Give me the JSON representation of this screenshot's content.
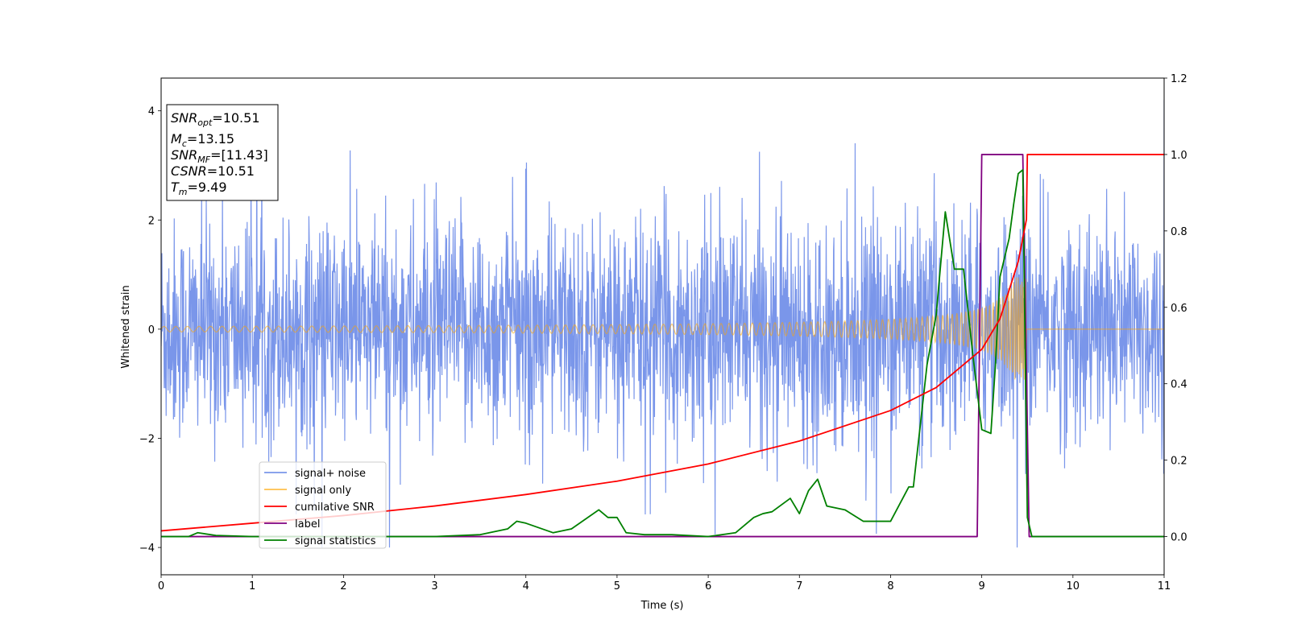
{
  "chart_data": {
    "type": "line",
    "xlabel": "Time (s)",
    "ylabel": "Whitened strain",
    "xlim": [
      0,
      11
    ],
    "ylim": [
      -4.5,
      4.6
    ],
    "y2lim": [
      -0.1,
      1.2
    ],
    "xticks": [
      "0",
      "1",
      "2",
      "3",
      "4",
      "5",
      "6",
      "7",
      "8",
      "9",
      "10",
      "11"
    ],
    "yticks": [
      "−4",
      "−2",
      "0",
      "2",
      "4"
    ],
    "y2ticks": [
      "0.0",
      "0.2",
      "0.4",
      "0.6",
      "0.8",
      "1.0",
      "1.2"
    ],
    "grid": false,
    "legend_position": "lower-left",
    "annotation": {
      "line1_base": "SNR",
      "line1_sub": "opt",
      "line1_val": "=10.51",
      "line2_base": "M",
      "line2_sub": "c",
      "line2_val": "=13.15",
      "line3_base": "SNR",
      "line3_sub": "MF",
      "line3_val": "=[11.43]",
      "line4_base": "CSNR",
      "line4_val": "=10.51",
      "line5_base": "T",
      "line5_sub": "m",
      "line5_val": "=9.49"
    },
    "series": [
      {
        "name": "signal+ noise",
        "color": "#4169E1",
        "axis": "left",
        "description": "whitened noisy strain, roughly ±2.8 with spikes to ±3.9",
        "amplitude_sd": 1.0
      },
      {
        "name": "signal only",
        "color": "#FFA500",
        "axis": "left",
        "description": "chirp growing to ≈±0.9 near t=9.49 then zero",
        "merger_time": 9.49
      },
      {
        "name": "cumilative SNR",
        "color": "#FF0000",
        "axis": "right",
        "x": [
          0,
          1,
          2,
          3,
          4,
          5,
          6,
          7,
          8,
          8.5,
          9,
          9.2,
          9.4,
          9.49,
          9.5,
          11
        ],
        "y": [
          0.015,
          0.035,
          0.055,
          0.08,
          0.11,
          0.145,
          0.19,
          0.25,
          0.33,
          0.39,
          0.49,
          0.57,
          0.72,
          0.83,
          1.0,
          1.0
        ]
      },
      {
        "name": "label",
        "color": "#800080",
        "axis": "right",
        "x": [
          0,
          8.95,
          9.0,
          9.45,
          9.52,
          11
        ],
        "y": [
          0,
          0,
          1.0,
          1.0,
          0,
          0
        ]
      },
      {
        "name": "signal statistics",
        "color": "#008000",
        "axis": "right",
        "x": [
          0,
          0.3,
          0.4,
          0.6,
          1,
          2,
          3,
          3.5,
          3.8,
          3.9,
          4.0,
          4.3,
          4.5,
          4.8,
          4.9,
          5.0,
          5.1,
          5.3,
          5.6,
          6.0,
          6.3,
          6.5,
          6.6,
          6.7,
          6.9,
          7.0,
          7.1,
          7.2,
          7.3,
          7.5,
          7.7,
          8.0,
          8.2,
          8.25,
          8.4,
          8.5,
          8.6,
          8.7,
          8.8,
          8.9,
          9.0,
          9.1,
          9.15,
          9.2,
          9.3,
          9.35,
          9.4,
          9.45,
          9.5,
          9.55,
          11
        ],
        "y": [
          0,
          0.0,
          0.01,
          0.003,
          0.0,
          0.0,
          0.0,
          0.005,
          0.02,
          0.04,
          0.035,
          0.01,
          0.02,
          0.07,
          0.05,
          0.05,
          0.01,
          0.005,
          0.005,
          0.0,
          0.01,
          0.05,
          0.06,
          0.065,
          0.1,
          0.06,
          0.12,
          0.15,
          0.08,
          0.07,
          0.04,
          0.04,
          0.13,
          0.13,
          0.45,
          0.58,
          0.85,
          0.7,
          0.7,
          0.48,
          0.28,
          0.27,
          0.45,
          0.68,
          0.78,
          0.87,
          0.95,
          0.96,
          0.05,
          0.0,
          0.0
        ]
      }
    ]
  }
}
